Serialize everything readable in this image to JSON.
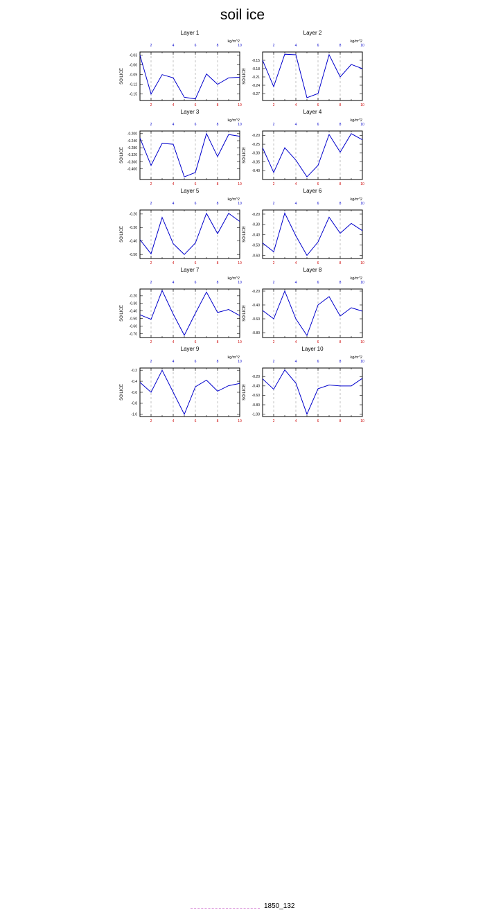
{
  "title": "soil ice",
  "legend": {
    "label": "1850_132",
    "color": "#d98fd9"
  },
  "colors": {
    "line": "#0000cc",
    "bottom_ticks": "#cc0000",
    "top_ticks": "#0000cc",
    "grid": "#999999"
  },
  "chart_data": [
    {
      "type": "line",
      "title": "Layer 1",
      "ylabel": "SOILICE",
      "units": "kg/m^2",
      "x": [
        1,
        2,
        3,
        4,
        5,
        6,
        7,
        8,
        9,
        10
      ],
      "values": [
        -0.03,
        -0.15,
        -0.09,
        -0.1,
        -0.16,
        -0.165,
        -0.088,
        -0.12,
        -0.1,
        -0.098
      ],
      "ylim": [
        -0.17,
        -0.02
      ],
      "yticks": [
        -0.03,
        -0.06,
        -0.09,
        -0.12,
        -0.15
      ],
      "yticklabels": [
        "-0.03",
        "-0.06",
        "-0.09",
        "-0.12",
        "-0.15"
      ],
      "xticks_bottom": [
        "2",
        "4",
        "6",
        "8",
        "10"
      ],
      "xticks_top": [
        "2",
        "4",
        "6",
        "8",
        "10"
      ]
    },
    {
      "type": "line",
      "title": "Layer 2",
      "ylabel": "SOILICE",
      "units": "kg/m^2",
      "x": [
        1,
        2,
        3,
        4,
        5,
        6,
        7,
        8,
        9,
        10
      ],
      "values": [
        -0.15,
        -0.245,
        -0.128,
        -0.13,
        -0.285,
        -0.27,
        -0.13,
        -0.21,
        -0.165,
        -0.18
      ],
      "ylim": [
        -0.295,
        -0.12
      ],
      "yticks": [
        -0.15,
        -0.18,
        -0.21,
        -0.24,
        -0.27
      ],
      "yticklabels": [
        "-0.15",
        "-0.18",
        "-0.21",
        "-0.24",
        "-0.27"
      ],
      "xticks_bottom": [
        "2",
        "4",
        "6",
        "8",
        "10"
      ],
      "xticks_top": [
        "2",
        "4",
        "6",
        "8",
        "10"
      ]
    },
    {
      "type": "line",
      "title": "Layer 3",
      "ylabel": "SOILICE",
      "units": "kg/m^2",
      "x": [
        1,
        2,
        3,
        4,
        5,
        6,
        7,
        8,
        9,
        10
      ],
      "values": [
        -0.225,
        -0.38,
        -0.255,
        -0.26,
        -0.445,
        -0.42,
        -0.2,
        -0.33,
        -0.205,
        -0.215
      ],
      "ylim": [
        -0.46,
        -0.185
      ],
      "yticks": [
        -0.2,
        -0.24,
        -0.28,
        -0.32,
        -0.36,
        -0.4
      ],
      "yticklabels": [
        "-0.200",
        "-0.240",
        "-0.280",
        "-0.320",
        "-0.360",
        "-0.400"
      ],
      "xticks_bottom": [
        "2",
        "4",
        "6",
        "8",
        "10"
      ],
      "xticks_top": [
        "2",
        "4",
        "6",
        "8",
        "10"
      ]
    },
    {
      "type": "line",
      "title": "Layer 4",
      "ylabel": "SOILICE",
      "units": "kg/m^2",
      "x": [
        1,
        2,
        3,
        4,
        5,
        6,
        7,
        8,
        9,
        10
      ],
      "values": [
        -0.27,
        -0.41,
        -0.27,
        -0.34,
        -0.435,
        -0.37,
        -0.195,
        -0.295,
        -0.19,
        -0.225
      ],
      "ylim": [
        -0.45,
        -0.175
      ],
      "yticks": [
        -0.2,
        -0.25,
        -0.3,
        -0.35,
        -0.4
      ],
      "yticklabels": [
        "-0.20",
        "-0.25",
        "-0.30",
        "-0.35",
        "-0.40"
      ],
      "xticks_bottom": [
        "2",
        "4",
        "6",
        "8",
        "10"
      ],
      "xticks_top": [
        "2",
        "4",
        "6",
        "8",
        "10"
      ]
    },
    {
      "type": "line",
      "title": "Layer 5",
      "ylabel": "SOILICE",
      "units": "kg/m^2",
      "x": [
        1,
        2,
        3,
        4,
        5,
        6,
        7,
        8,
        9,
        10
      ],
      "values": [
        -0.39,
        -0.495,
        -0.225,
        -0.42,
        -0.5,
        -0.415,
        -0.195,
        -0.345,
        -0.195,
        -0.255
      ],
      "ylim": [
        -0.53,
        -0.17
      ],
      "yticks": [
        -0.2,
        -0.3,
        -0.4,
        -0.5
      ],
      "yticklabels": [
        "-0.20",
        "-0.30",
        "-0.40",
        "-0.50"
      ],
      "xticks_bottom": [
        "2",
        "4",
        "6",
        "8",
        "10"
      ],
      "xticks_top": [
        "2",
        "4",
        "6",
        "8",
        "10"
      ]
    },
    {
      "type": "line",
      "title": "Layer 6",
      "ylabel": "SOILICE",
      "units": "kg/m^2",
      "x": [
        1,
        2,
        3,
        4,
        5,
        6,
        7,
        8,
        9,
        10
      ],
      "values": [
        -0.48,
        -0.565,
        -0.19,
        -0.41,
        -0.6,
        -0.47,
        -0.23,
        -0.385,
        -0.29,
        -0.36
      ],
      "ylim": [
        -0.63,
        -0.16
      ],
      "yticks": [
        -0.2,
        -0.3,
        -0.4,
        -0.5,
        -0.6
      ],
      "yticklabels": [
        "-0.20",
        "-0.30",
        "-0.40",
        "-0.50",
        "-0.60"
      ],
      "xticks_bottom": [
        "2",
        "4",
        "6",
        "8",
        "10"
      ],
      "xticks_top": [
        "2",
        "4",
        "6",
        "8",
        "10"
      ]
    },
    {
      "type": "line",
      "title": "Layer 7",
      "ylabel": "SOILICE",
      "units": "kg/m^2",
      "x": [
        1,
        2,
        3,
        4,
        5,
        6,
        7,
        8,
        9,
        10
      ],
      "values": [
        -0.45,
        -0.51,
        -0.13,
        -0.44,
        -0.72,
        -0.43,
        -0.15,
        -0.42,
        -0.38,
        -0.46
      ],
      "ylim": [
        -0.75,
        -0.11
      ],
      "yticks": [
        -0.2,
        -0.3,
        -0.4,
        -0.5,
        -0.6,
        -0.7
      ],
      "yticklabels": [
        "-0.20",
        "-0.30",
        "-0.40",
        "-0.50",
        "-0.60",
        "-0.70"
      ],
      "xticks_bottom": [
        "2",
        "4",
        "6",
        "8",
        "10"
      ],
      "xticks_top": [
        "2",
        "4",
        "6",
        "8",
        "10"
      ]
    },
    {
      "type": "line",
      "title": "Layer 8",
      "ylabel": "SOILICE",
      "units": "kg/m^2",
      "x": [
        1,
        2,
        3,
        4,
        5,
        6,
        7,
        8,
        9,
        10
      ],
      "values": [
        -0.48,
        -0.6,
        -0.2,
        -0.6,
        -0.84,
        -0.4,
        -0.28,
        -0.56,
        -0.44,
        -0.49
      ],
      "ylim": [
        -0.87,
        -0.17
      ],
      "yticks": [
        -0.2,
        -0.4,
        -0.6,
        -0.8
      ],
      "yticklabels": [
        "-0.20",
        "-0.40",
        "-0.60",
        "-0.80"
      ],
      "xticks_bottom": [
        "2",
        "4",
        "6",
        "8",
        "10"
      ],
      "xticks_top": [
        "2",
        "4",
        "6",
        "8",
        "10"
      ]
    },
    {
      "type": "line",
      "title": "Layer 9",
      "ylabel": "SOILICE",
      "units": "kg/m^2",
      "x": [
        1,
        2,
        3,
        4,
        5,
        6,
        7,
        8,
        9,
        10
      ],
      "values": [
        -0.42,
        -0.6,
        -0.2,
        -0.6,
        -1.0,
        -0.5,
        -0.38,
        -0.58,
        -0.48,
        -0.44
      ],
      "ylim": [
        -1.04,
        -0.16
      ],
      "yticks": [
        -0.2,
        -0.4,
        -0.6,
        -0.8,
        -1.0
      ],
      "yticklabels": [
        "-0.2",
        "-0.4",
        "-0.6",
        "-0.8",
        "-1.0"
      ],
      "xticks_bottom": [
        "2",
        "4",
        "6",
        "8",
        "10"
      ],
      "xticks_top": [
        "2",
        "4",
        "6",
        "8",
        "10"
      ]
    },
    {
      "type": "line",
      "title": "Layer 10",
      "ylabel": "SOILICE",
      "units": "kg/m^2",
      "x": [
        1,
        2,
        3,
        4,
        5,
        6,
        7,
        8,
        9,
        10
      ],
      "values": [
        -0.25,
        -0.47,
        -0.06,
        -0.34,
        -1.0,
        -0.46,
        -0.38,
        -0.4,
        -0.4,
        -0.24
      ],
      "ylim": [
        -1.05,
        -0.02
      ],
      "yticks": [
        -0.2,
        -0.4,
        -0.6,
        -0.8,
        -1.0
      ],
      "yticklabels": [
        "-0.20",
        "-0.40",
        "-0.60",
        "-0.80",
        "-1.00"
      ],
      "xticks_bottom": [
        "2",
        "4",
        "6",
        "8",
        "10"
      ],
      "xticks_top": [
        "2",
        "4",
        "6",
        "8",
        "10"
      ]
    }
  ]
}
